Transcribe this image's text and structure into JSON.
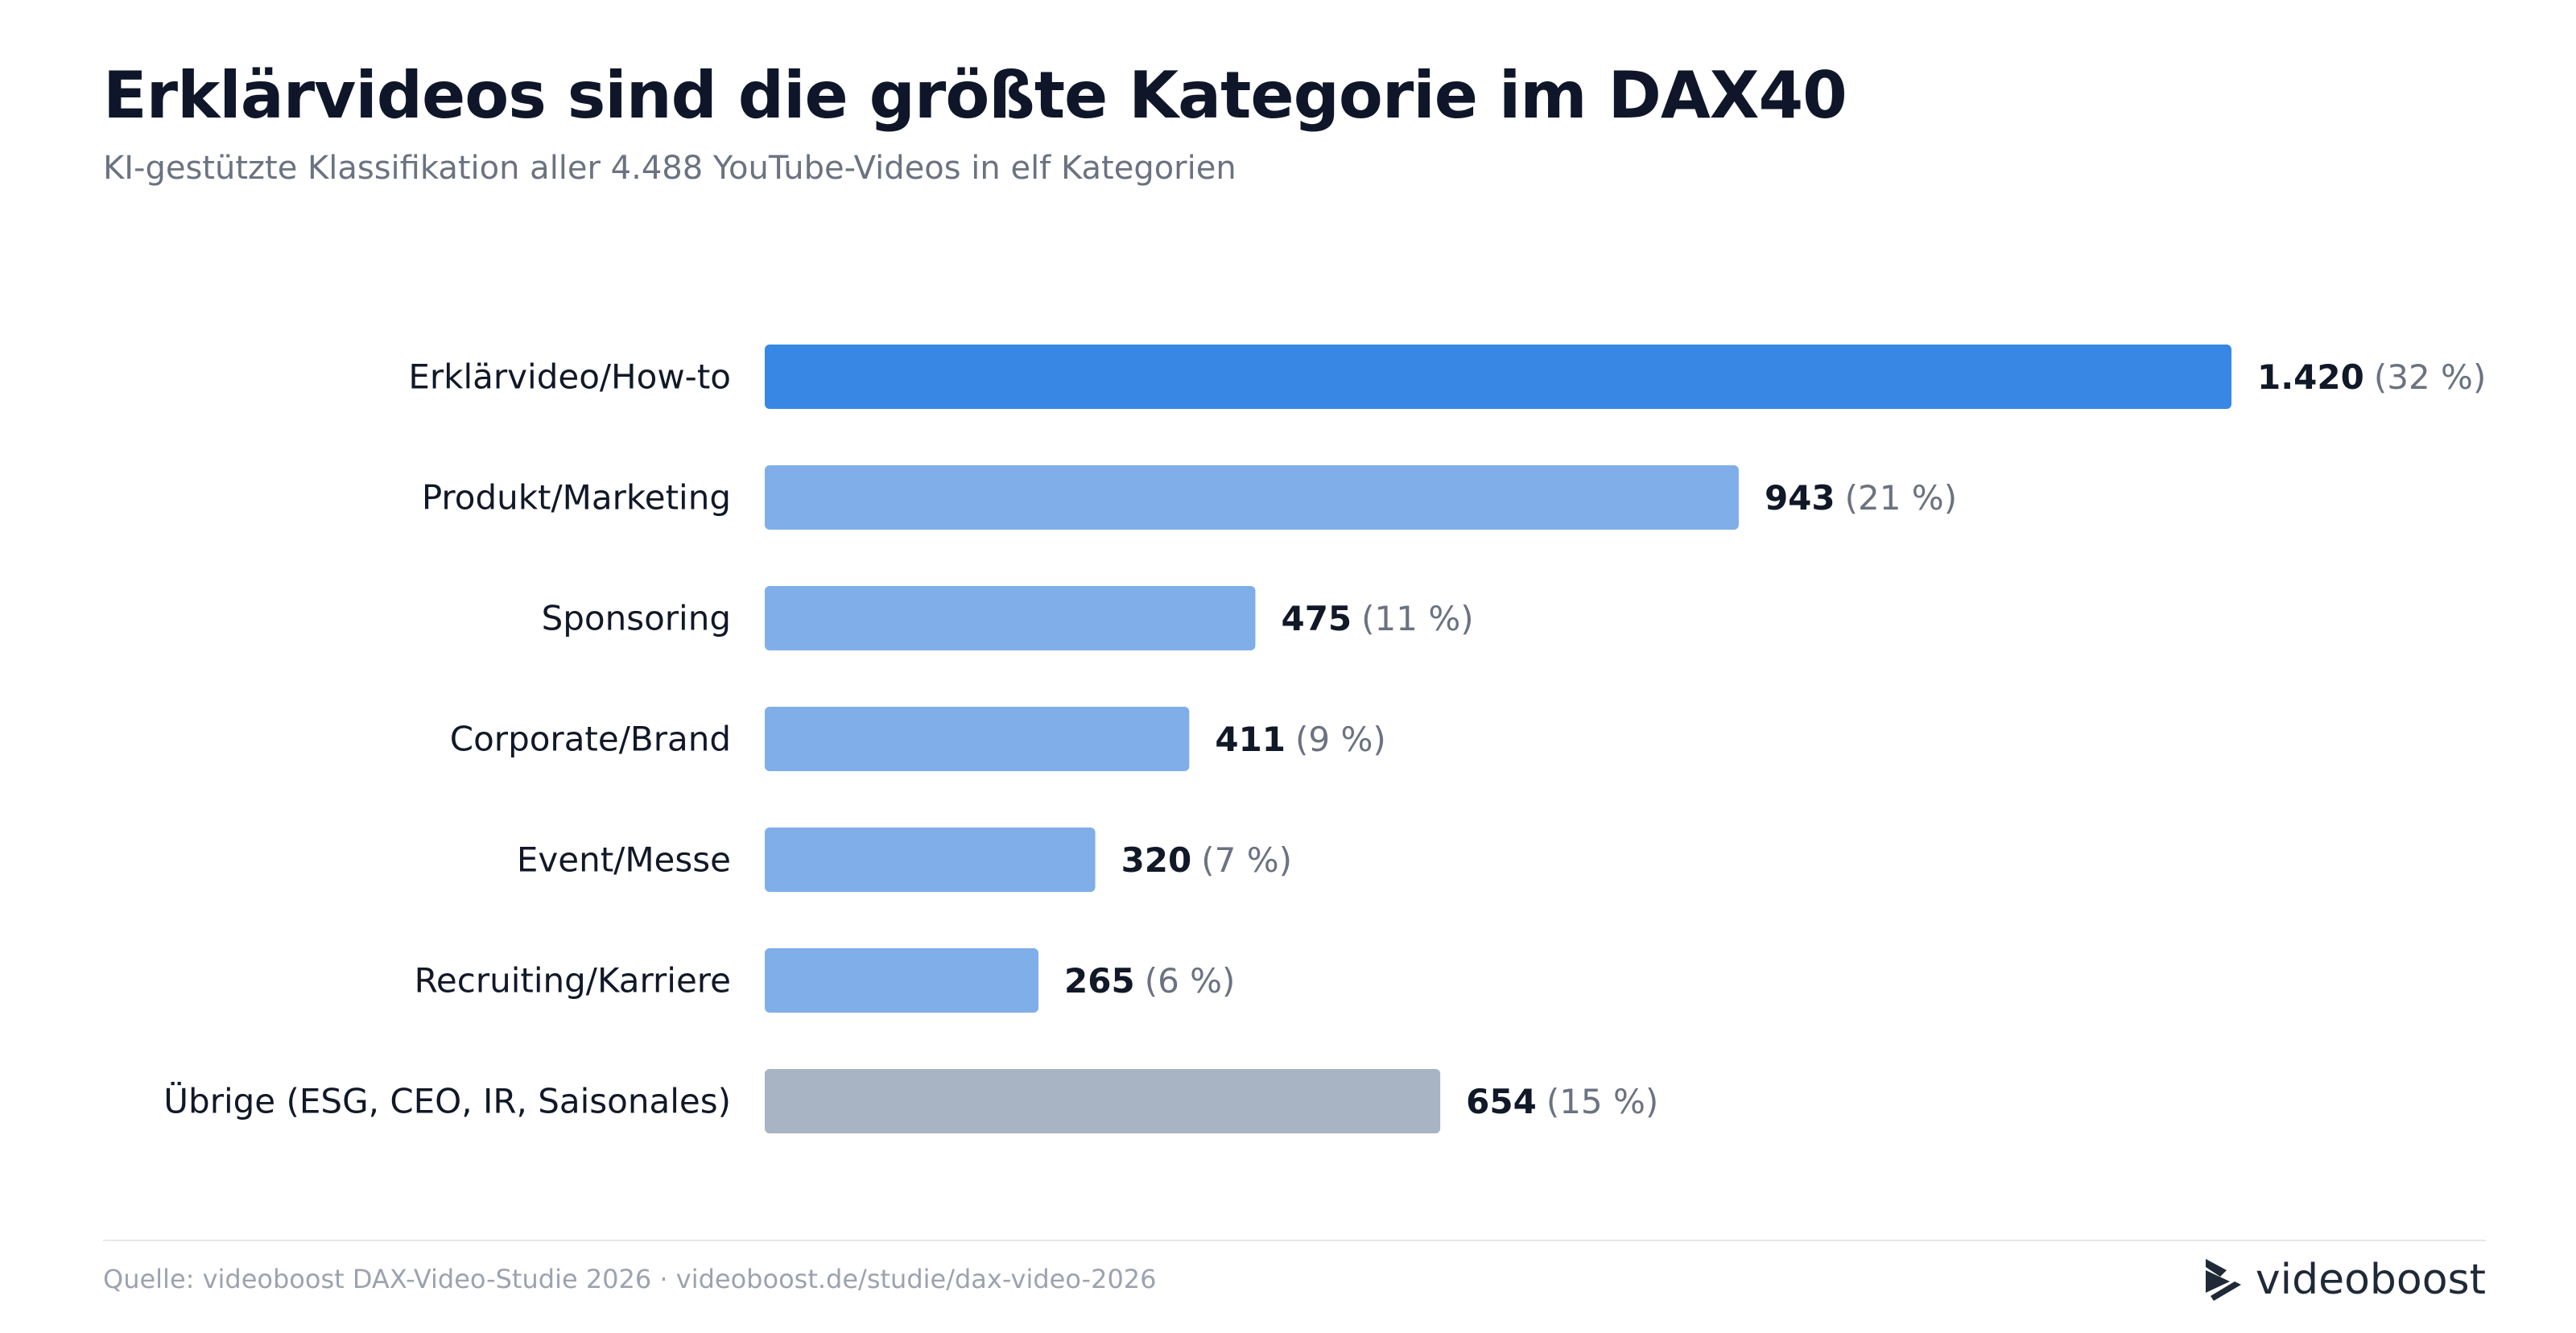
{
  "header": {
    "title": "Erklärvideos sind die größte Kategorie im DAX40",
    "subtitle": "KI-gestützte Klassifikation aller 4.488 YouTube-Videos in elf Kategorien"
  },
  "footer": {
    "source": "Quelle: videoboost DAX-Video-Studie 2026 · videoboost.de/studie/dax-video-2026",
    "brand": "videoboost"
  },
  "colors": {
    "primary": "#3887e4",
    "secondary": "#80aee9",
    "other": "#a8b4c3"
  },
  "chart_data": {
    "type": "bar",
    "orientation": "horizontal",
    "categories": [
      "Erklärvideo/How-to",
      "Produkt/Marketing",
      "Sponsoring",
      "Corporate/Brand",
      "Event/Messe",
      "Recruiting/Karriere",
      "Übrige (ESG, CEO, IR, Saisonales)"
    ],
    "values": [
      1420,
      943,
      475,
      411,
      320,
      265,
      654
    ],
    "value_labels": [
      "1.420",
      "943",
      "475",
      "411",
      "320",
      "265",
      "654"
    ],
    "percent_labels": [
      "(32 %)",
      "(21 %)",
      "(11 %)",
      "(9 %)",
      "(7 %)",
      "(6 %)",
      "(15 %)"
    ],
    "bar_colors": [
      "#3887e4",
      "#80aee9",
      "#80aee9",
      "#80aee9",
      "#80aee9",
      "#80aee9",
      "#a8b4c3"
    ],
    "xlim": [
      0,
      1420
    ],
    "grid": false,
    "legend": "none"
  }
}
